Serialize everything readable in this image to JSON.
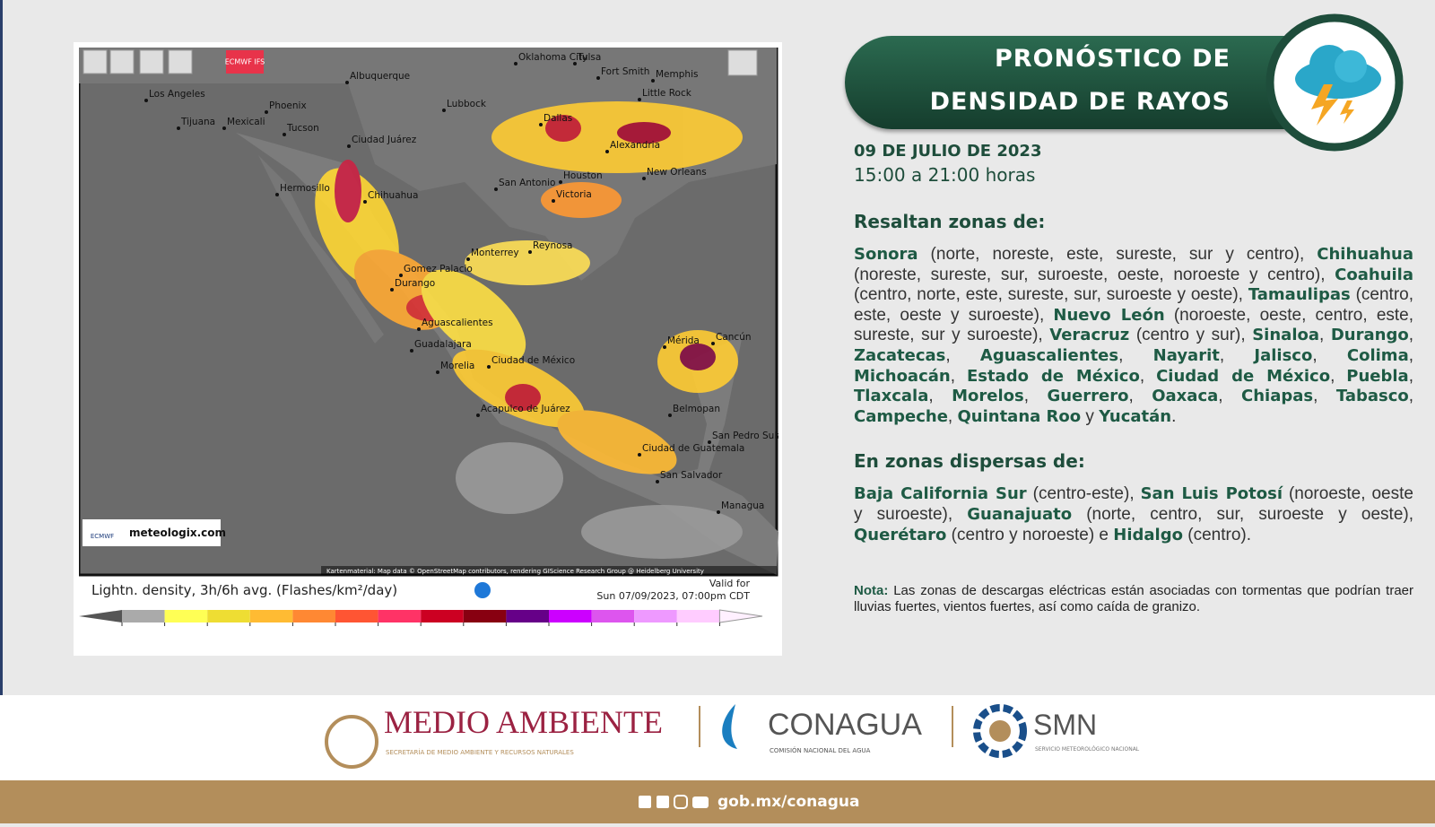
{
  "header": {
    "title_line1": "PRONÓSTICO DE",
    "title_line2": "DENSIDAD DE RAYOS",
    "date": "09 DE JULIO DE 2023",
    "hours": "15:00 a 21:00 horas"
  },
  "main": {
    "heading": "Resaltan zonas de:",
    "segments": [
      {
        "strong": "Sonora"
      },
      {
        "text": " (norte, noreste, este, sureste, sur y centro), "
      },
      {
        "strong": "Chihuahua"
      },
      {
        "text": " (noreste, sureste, sur, suroeste, oeste, noroeste y centro), "
      },
      {
        "strong": "Coahuila"
      },
      {
        "text": " (centro, norte, este, sureste, sur, suroeste y oeste), "
      },
      {
        "strong": "Tamaulipas"
      },
      {
        "text": " (centro, este, oeste y suroeste), "
      },
      {
        "strong": "Nuevo León"
      },
      {
        "text": " (noroeste, oeste, centro, este, sureste, sur y suroeste), "
      },
      {
        "strong": "Veracruz"
      },
      {
        "text": " (centro y sur), "
      },
      {
        "strong": "Sinaloa"
      },
      {
        "text": ", "
      },
      {
        "strong": "Durango"
      },
      {
        "text": ", "
      },
      {
        "strong": "Zacatecas"
      },
      {
        "text": ", "
      },
      {
        "strong": "Aguascalientes"
      },
      {
        "text": ", "
      },
      {
        "strong": "Nayarit"
      },
      {
        "text": ", "
      },
      {
        "strong": "Jalisco"
      },
      {
        "text": ", "
      },
      {
        "strong": "Colima"
      },
      {
        "text": ", "
      },
      {
        "strong": "Michoacán"
      },
      {
        "text": ", "
      },
      {
        "strong": "Estado de México"
      },
      {
        "text": ", "
      },
      {
        "strong": "Ciudad de México"
      },
      {
        "text": ", "
      },
      {
        "strong": "Puebla"
      },
      {
        "text": ", "
      },
      {
        "strong": "Tlaxcala"
      },
      {
        "text": ", "
      },
      {
        "strong": "Morelos"
      },
      {
        "text": ", "
      },
      {
        "strong": "Guerrero"
      },
      {
        "text": ", "
      },
      {
        "strong": "Oaxaca"
      },
      {
        "text": ", "
      },
      {
        "strong": "Chiapas"
      },
      {
        "text": ", "
      },
      {
        "strong": "Tabasco"
      },
      {
        "text": ", "
      },
      {
        "strong": "Campeche"
      },
      {
        "text": ", "
      },
      {
        "strong": "Quintana Roo"
      },
      {
        "text": " y "
      },
      {
        "strong": "Yucatán"
      },
      {
        "text": "."
      }
    ]
  },
  "dispersed": {
    "heading": "En zonas dispersas de:",
    "segments": [
      {
        "strong": "Baja California Sur"
      },
      {
        "text": " (centro-este), "
      },
      {
        "strong": "San Luis Potosí"
      },
      {
        "text": " (noroeste, oeste y suroeste), "
      },
      {
        "strong": "Guanajuato"
      },
      {
        "text": " (norte, centro, sur, suroeste y oeste), "
      },
      {
        "strong": "Querétaro"
      },
      {
        "text": " (centro y noroeste) e "
      },
      {
        "strong": "Hidalgo"
      },
      {
        "text": " (centro)."
      }
    ]
  },
  "note": {
    "label": "Nota:",
    "text": " Las zonas de descargas eléctricas están asociadas con tormentas que podrían traer lluvias fuertes, vientos fuertes, así como caída de granizo."
  },
  "map": {
    "badge": "ECMWF IFS",
    "labels": [
      "Los Angeles",
      "Phoenix",
      "Tijuana",
      "Mexicali",
      "Tucson",
      "Albuquerque",
      "Lubbock",
      "Ciudad Juárez",
      "Oklahoma City",
      "Tulsa",
      "Fort Smith",
      "Memphis",
      "Little Rock",
      "Dallas",
      "Alexandria",
      "Houston",
      "New Orleans",
      "San Antonio",
      "Victoria",
      "Hermosillo",
      "Chihuahua",
      "Monterrey",
      "Reynosa",
      "Gomez Palacio",
      "Durango",
      "Aguascalientes",
      "Guadalajara",
      "Morelia",
      "Ciudad de México",
      "Acapulco de Juárez",
      "Mérida",
      "Cancún",
      "Belmopan",
      "San Pedro Sula",
      "Ciudad de Guatemala",
      "San Salvador",
      "Managua"
    ],
    "logo_small": "ECMWF",
    "logo_site": "meteologix.com",
    "attribution": "Kartenmaterial: Map data © OpenStreetMap contributors, rendering GIScience Research Group @ Heidelberg University",
    "legend_title": "Lightn. density, 3h/6h avg. (Flashes/km²/day)",
    "valid_label": "Valid for",
    "valid_time": "Sun 07/09/2023, 07:00pm CDT",
    "colorbar": {
      "ticks": [
        0.01,
        0.1,
        0.2,
        0.4,
        0.6,
        0.8,
        1,
        1.5,
        2,
        3,
        5,
        10,
        15,
        20,
        30
      ],
      "colors": [
        "#555555",
        "#aaaaaa",
        "#ffff55",
        "#eedd33",
        "#ffbb33",
        "#ff8833",
        "#ff5533",
        "#ff3366",
        "#cc0022",
        "#880011",
        "#660088",
        "#cc00ff",
        "#dd55ee",
        "#ee99ff",
        "#ffccff",
        "#fff0ff"
      ]
    }
  },
  "footer": {
    "semarnat": "MEDIO AMBIENTE",
    "semarnat_sub": "SECRETARÍA DE MEDIO AMBIENTE Y RECURSOS NATURALES",
    "conagua": "CONAGUA",
    "conagua_sub": "COMISIÓN NACIONAL DEL AGUA",
    "smn": "SMN",
    "smn_sub": "SERVICIO METEOROLÓGICO NACIONAL",
    "url": "gob.mx/conagua"
  }
}
